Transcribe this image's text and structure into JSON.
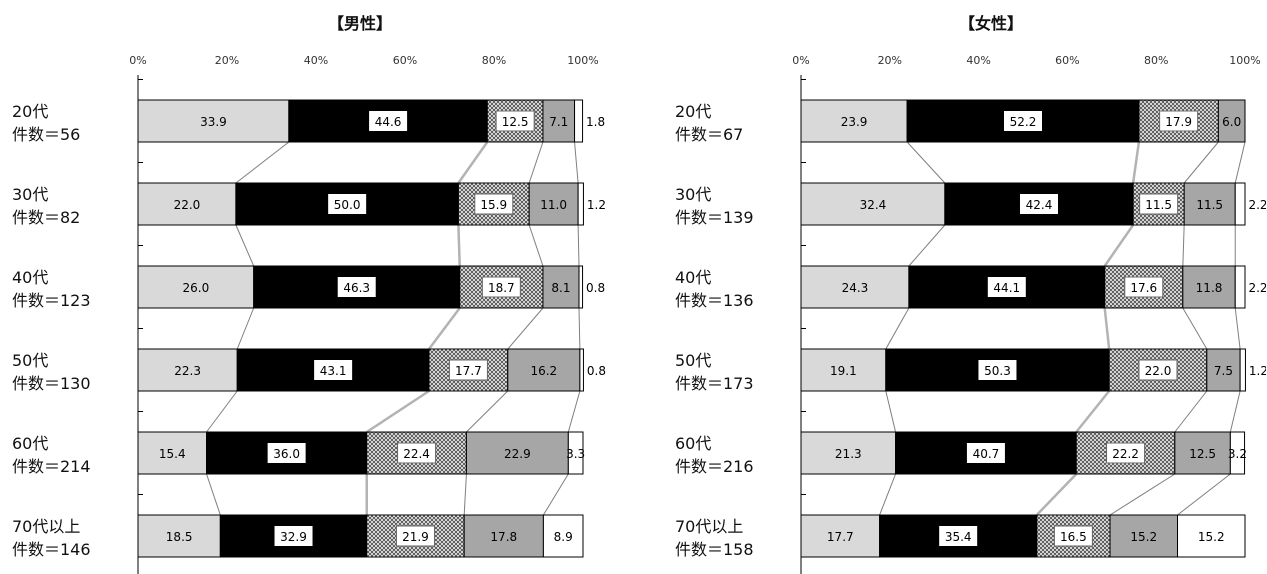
{
  "chart_data": [
    {
      "type": "bar",
      "stacked": "percent",
      "orientation": "horizontal",
      "title": "【男性】",
      "x_ticks": [
        "0%",
        "20%",
        "40%",
        "60%",
        "80%",
        "100%"
      ],
      "xlim": [
        0,
        100
      ],
      "grid": false,
      "categories": [
        {
          "label": "20代",
          "count_label": "件数＝56"
        },
        {
          "label": "30代",
          "count_label": "件数＝82"
        },
        {
          "label": "40代",
          "count_label": "件数＝123"
        },
        {
          "label": "50代",
          "count_label": "件数＝130"
        },
        {
          "label": "60代",
          "count_label": "件数＝214"
        },
        {
          "label": "70代以上",
          "count_label": "件数＝146"
        }
      ],
      "series": [
        {
          "values": [
            33.9,
            22.0,
            26.0,
            22.3,
            15.4,
            18.5
          ],
          "labels": [
            "33.9",
            "22.0",
            "26.0",
            "22.3",
            "15.4",
            "18.5"
          ]
        },
        {
          "values": [
            44.6,
            50.0,
            46.3,
            43.1,
            36.0,
            32.9
          ],
          "labels": [
            "44.6",
            "50.0",
            "46.3",
            "43.1",
            "36.0",
            "32.9"
          ]
        },
        {
          "values": [
            12.5,
            15.9,
            18.7,
            17.7,
            22.4,
            21.9
          ],
          "labels": [
            "12.5",
            "15.9",
            "18.7",
            "17.7",
            "22.4",
            "21.9"
          ]
        },
        {
          "values": [
            7.1,
            11.0,
            8.1,
            16.2,
            22.9,
            17.8
          ],
          "labels": [
            "7.1",
            "11.0",
            "8.1",
            "16.2",
            "22.9",
            "17.8"
          ]
        },
        {
          "values": [
            1.8,
            1.2,
            0.8,
            0.8,
            3.3,
            8.9
          ],
          "labels": [
            "1.8",
            "1.2",
            "0.8",
            "0.8",
            "3.3",
            "8.9"
          ]
        }
      ]
    },
    {
      "type": "bar",
      "stacked": "percent",
      "orientation": "horizontal",
      "title": "【女性】",
      "x_ticks": [
        "0%",
        "20%",
        "40%",
        "60%",
        "80%",
        "100%"
      ],
      "xlim": [
        0,
        100
      ],
      "grid": false,
      "categories": [
        {
          "label": "20代",
          "count_label": "件数＝67"
        },
        {
          "label": "30代",
          "count_label": "件数＝139"
        },
        {
          "label": "40代",
          "count_label": "件数＝136"
        },
        {
          "label": "50代",
          "count_label": "件数＝173"
        },
        {
          "label": "60代",
          "count_label": "件数＝216"
        },
        {
          "label": "70代以上",
          "count_label": "件数＝158"
        }
      ],
      "series": [
        {
          "values": [
            23.9,
            32.4,
            24.3,
            19.1,
            21.3,
            17.7
          ],
          "labels": [
            "23.9",
            "32.4",
            "24.3",
            "19.1",
            "21.3",
            "17.7"
          ]
        },
        {
          "values": [
            52.2,
            42.4,
            44.1,
            50.3,
            40.7,
            35.4
          ],
          "labels": [
            "52.2",
            "42.4",
            "44.1",
            "50.3",
            "40.7",
            "35.4"
          ]
        },
        {
          "values": [
            17.9,
            11.5,
            17.6,
            22.0,
            22.2,
            16.5
          ],
          "labels": [
            "17.9",
            "11.5",
            "17.6",
            "22.0",
            "22.2",
            "16.5"
          ]
        },
        {
          "values": [
            6.0,
            11.5,
            11.8,
            7.5,
            12.5,
            15.2
          ],
          "labels": [
            "6.0",
            "11.5",
            "11.8",
            "7.5",
            "12.5",
            "15.2"
          ]
        },
        {
          "values": [
            0.0,
            2.2,
            2.2,
            1.2,
            3.2,
            15.2
          ],
          "labels": [
            "",
            "2.2",
            "2.2",
            "1.2",
            "3.2",
            "15.2"
          ]
        }
      ]
    }
  ],
  "colors": {
    "seg1": "#d9d9d9",
    "seg2": "#000000",
    "seg3_pattern": "crosshatch",
    "seg4": "#a6a6a6",
    "seg5": "#ffffff"
  }
}
